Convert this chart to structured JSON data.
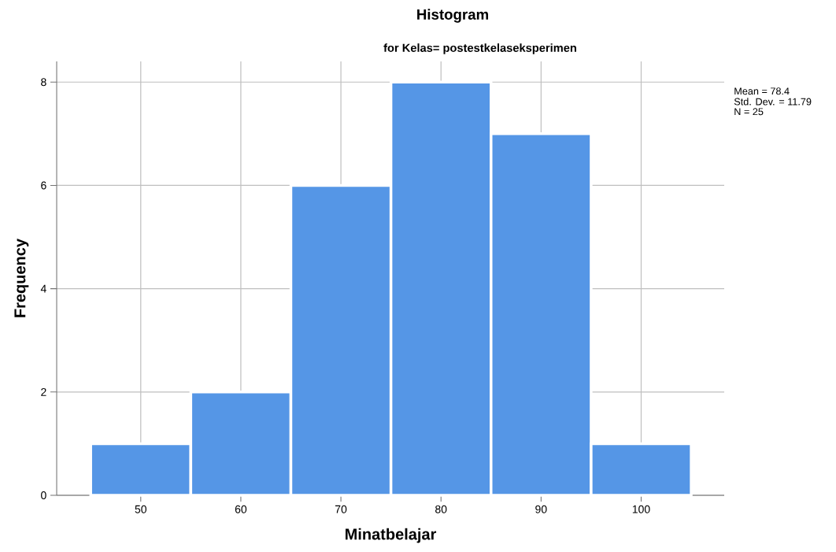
{
  "chart_data": {
    "type": "histogram",
    "title": "Histogram",
    "subtitle": "for Kelas= postestkelaseksperimen",
    "xlabel": "Minatbelajar",
    "ylabel": "Frequency",
    "bins": [
      45,
      55,
      65,
      75,
      85,
      95,
      105
    ],
    "values": [
      1,
      2,
      6,
      8,
      7,
      1
    ],
    "color": "#5596e6",
    "xlim": [
      41.6,
      108.3
    ],
    "ylim": [
      0,
      8.4
    ],
    "xticks": [
      50,
      60,
      70,
      80,
      90,
      100
    ],
    "yticks": [
      0,
      2,
      4,
      6,
      8
    ],
    "grid": true,
    "annotations": [
      "Mean = 78.4",
      "Std. Dev. = 11.79",
      "N = 25"
    ]
  }
}
